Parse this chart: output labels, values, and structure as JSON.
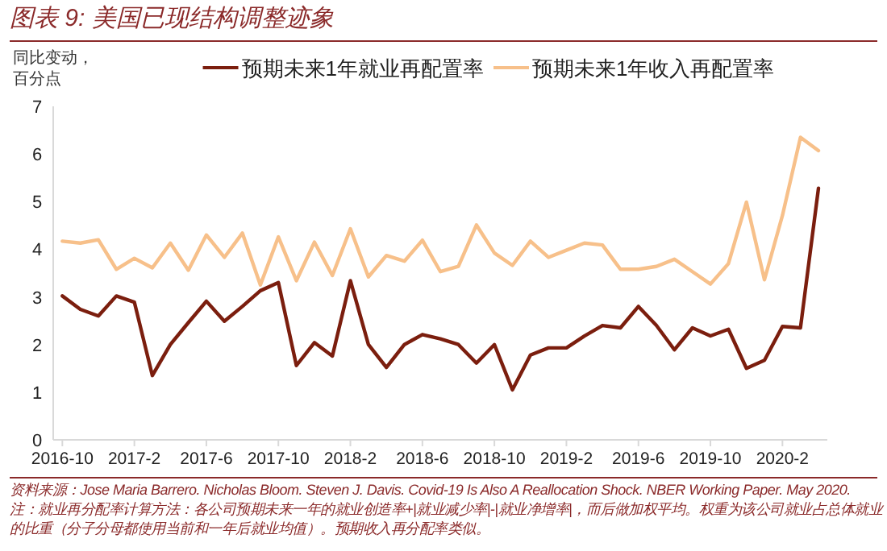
{
  "chart_data": {
    "type": "line",
    "title": "图表 9:  美国已现结构调整迹象",
    "ylabel": "同比变动，百分点",
    "x": [
      "2016-10",
      "2016-11",
      "2016-12",
      "2017-01",
      "2017-02",
      "2017-03",
      "2017-04",
      "2017-05",
      "2017-06",
      "2017-07",
      "2017-08",
      "2017-09",
      "2017-10",
      "2017-11",
      "2017-12",
      "2018-01",
      "2018-02",
      "2018-03",
      "2018-04",
      "2018-05",
      "2018-06",
      "2018-07",
      "2018-08",
      "2018-09",
      "2018-10",
      "2018-11",
      "2018-12",
      "2019-01",
      "2019-02",
      "2019-03",
      "2019-04",
      "2019-05",
      "2019-06",
      "2019-07",
      "2019-08",
      "2019-09",
      "2019-10",
      "2019-11",
      "2019-12",
      "2020-01",
      "2020-02",
      "2020-03",
      "2020-04"
    ],
    "series": [
      {
        "name": "预期未来1年就业再配置率",
        "color": "#7b1e0e",
        "values": [
          3.02,
          2.74,
          2.6,
          3.02,
          2.89,
          1.35,
          2.0,
          2.46,
          2.91,
          2.49,
          2.8,
          3.13,
          3.3,
          1.56,
          2.04,
          1.76,
          3.34,
          2.0,
          1.52,
          2.0,
          2.21,
          2.12,
          2.0,
          1.61,
          2.0,
          1.05,
          1.78,
          1.93,
          1.93,
          2.18,
          2.4,
          2.35,
          2.8,
          2.4,
          1.89,
          2.35,
          2.18,
          2.32,
          1.5,
          1.67,
          2.38,
          2.35,
          5.28
        ]
      },
      {
        "name": "预期未来1年收入再配置率",
        "color": "#f7c08a",
        "values": [
          4.17,
          4.13,
          4.2,
          3.58,
          3.81,
          3.61,
          4.13,
          3.56,
          4.3,
          3.83,
          4.34,
          3.25,
          4.26,
          3.34,
          4.15,
          3.45,
          4.43,
          3.42,
          3.87,
          3.75,
          4.19,
          3.53,
          3.64,
          4.51,
          3.92,
          3.66,
          4.17,
          3.83,
          3.98,
          4.13,
          4.09,
          3.58,
          3.58,
          3.64,
          3.79,
          3.53,
          3.27,
          3.7,
          4.99,
          3.36,
          4.71,
          6.35,
          6.07
        ]
      }
    ],
    "xlim": [
      "2016-09-16",
      "2020-04-16"
    ],
    "xticks": [
      {
        "value": "2016-10",
        "label": "2016-10"
      },
      {
        "value": "2017-02",
        "label": "2017-2"
      },
      {
        "value": "2017-06",
        "label": "2017-6"
      },
      {
        "value": "2017-10",
        "label": "2017-10"
      },
      {
        "value": "2018-02",
        "label": "2018-2"
      },
      {
        "value": "2018-06",
        "label": "2018-6"
      },
      {
        "value": "2018-10",
        "label": "2018-10"
      },
      {
        "value": "2019-02",
        "label": "2019-2"
      },
      {
        "value": "2019-06",
        "label": "2019-6"
      },
      {
        "value": "2019-10",
        "label": "2019-10"
      },
      {
        "value": "2020-02",
        "label": "2020-2"
      }
    ],
    "ylim": [
      0,
      7
    ],
    "yticks": [
      0,
      1,
      2,
      3,
      4,
      5,
      6,
      7
    ],
    "legend": "top",
    "grid": false,
    "marker": "none",
    "line_style": "solid",
    "annotations": [
      "资料来源：Jose Maria Barrero. Nicholas Bloom. Steven J. Davis. Covid-19 Is Also A Reallocation Shock. NBER Working Paper. May 2020.",
      "注：就业再分配率计算方法：各公司预期未来一年的就业创造率+|就业减少率|-|就业净增率|，而后做加权平均。权重为该公司就业占总体就业的比重（分子分母都使用当前和一年后就业均值）。预期收入再分配率类似。"
    ]
  }
}
